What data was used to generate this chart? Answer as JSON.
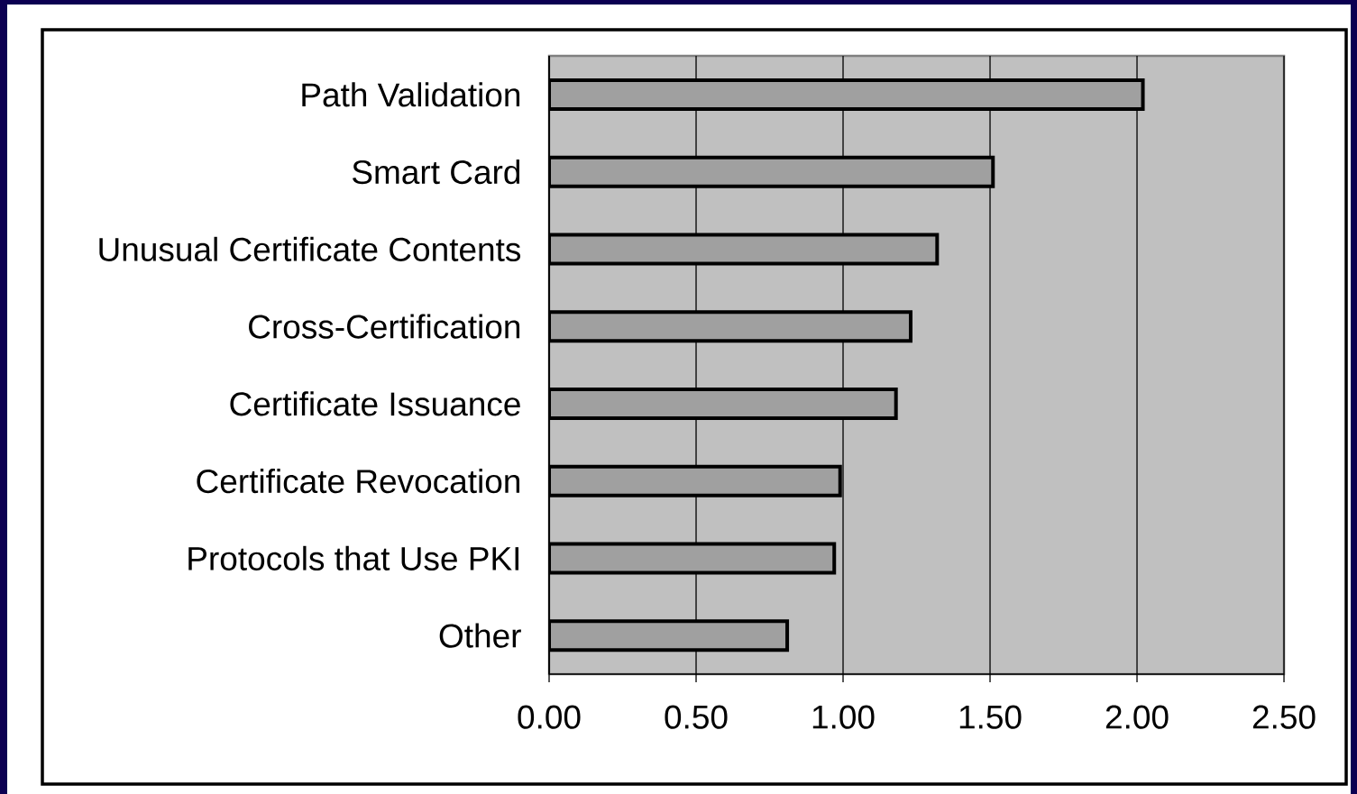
{
  "chart_data": {
    "type": "bar",
    "orientation": "horizontal",
    "categories": [
      "Path Validation",
      "Smart Card",
      "Unusual Certificate Contents",
      "Cross-Certification",
      "Certificate Issuance",
      "Certificate Revocation",
      "Protocols that Use PKI",
      "Other"
    ],
    "values": [
      2.02,
      1.51,
      1.32,
      1.23,
      1.18,
      0.99,
      0.97,
      0.81
    ],
    "color": "#a0a0a0",
    "xlim": [
      0,
      2.5
    ],
    "xticks": [
      {
        "value": 0,
        "label": "0.00"
      },
      {
        "value": 0.5,
        "label": "0.50"
      },
      {
        "value": 1,
        "label": "1.00"
      },
      {
        "value": 1.5,
        "label": "1.50"
      },
      {
        "value": 2,
        "label": "2.00"
      },
      {
        "value": 2.5,
        "label": "2.50"
      }
    ],
    "grid": "x"
  }
}
